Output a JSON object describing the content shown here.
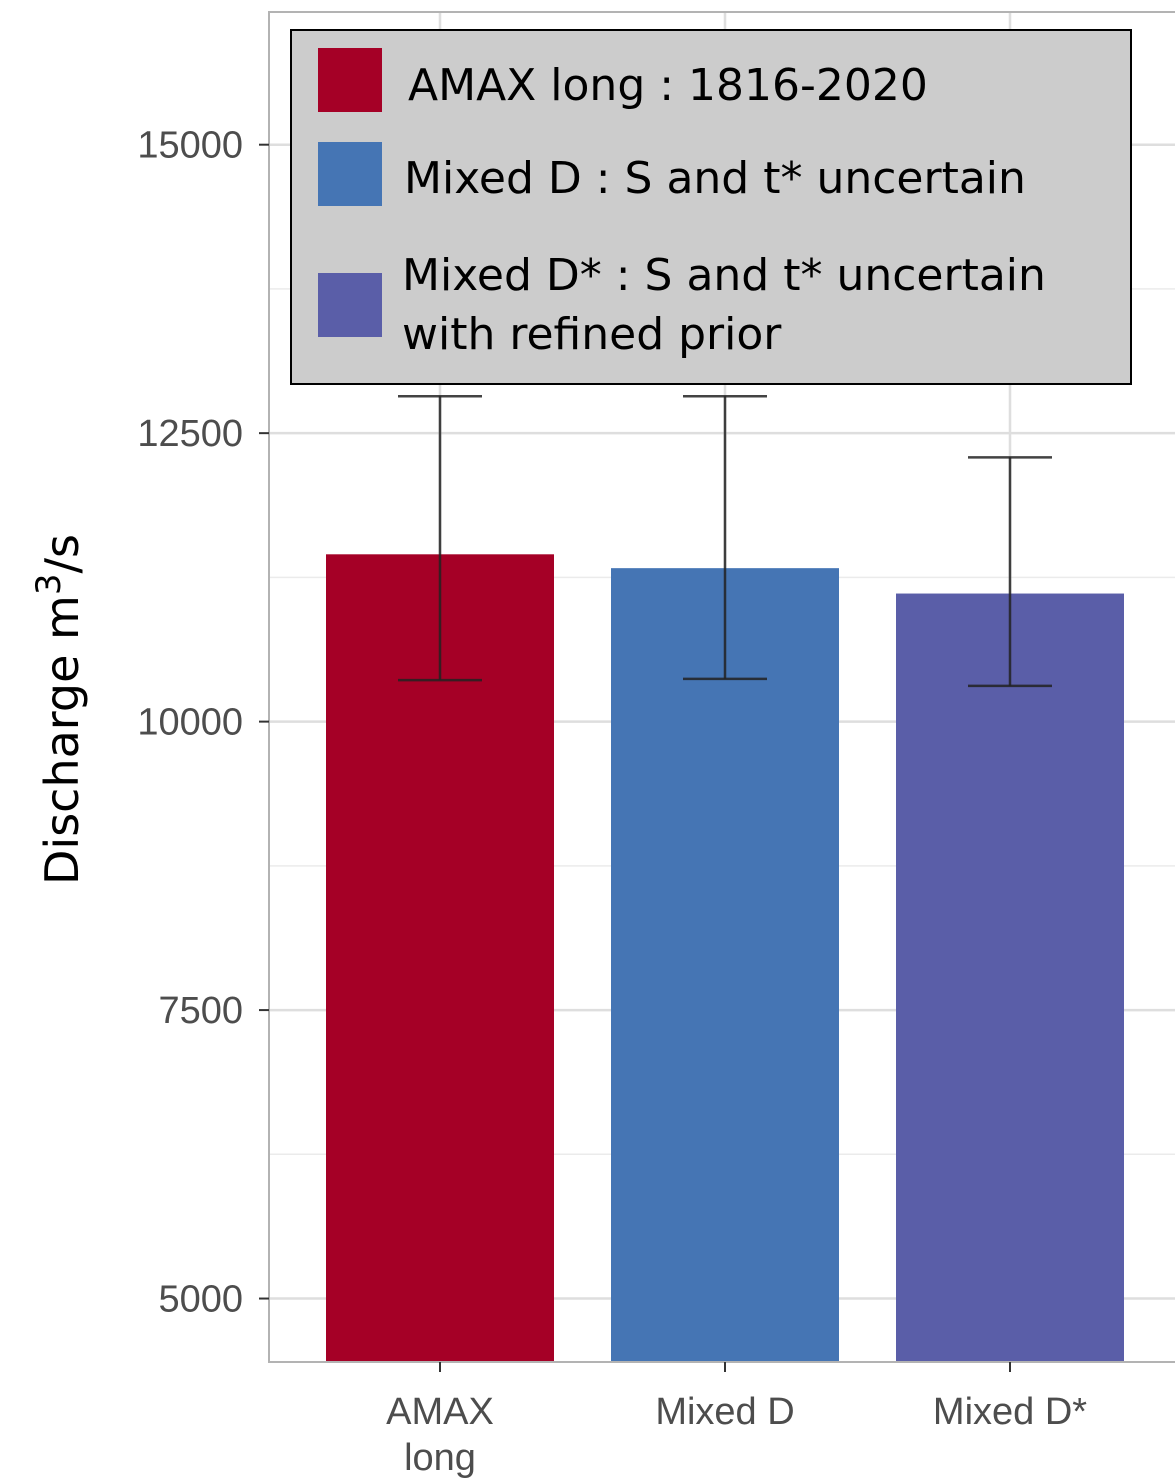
{
  "chart_data": {
    "type": "bar",
    "categories": [
      "AMAX\nlong",
      "Mixed D",
      "Mixed D*"
    ],
    "values": [
      11450,
      11330,
      11110
    ],
    "error_low": [
      10360,
      10370,
      10310
    ],
    "error_high": [
      12820,
      12820,
      12290
    ],
    "colors": [
      "#a50026",
      "#4575b4",
      "#5a5ea8"
    ],
    "ylabel": "Discharge m",
    "ylabel_superscript": "3",
    "ylabel_suffix": "/s",
    "ylim": [
      4450,
      16150
    ],
    "yticks": [
      5000,
      7500,
      10000,
      12500,
      15000
    ],
    "grid": true,
    "legend_position": "top",
    "legend": [
      {
        "text": [
          "AMAX long : 1816-2020"
        ],
        "color": "#a50026"
      },
      {
        "text": [
          "Mixed D : S and t* uncertain"
        ],
        "color": "#4575b4"
      },
      {
        "text": [
          "Mixed D* : S and t* uncertain",
          "with refined prior"
        ],
        "color": "#5a5ea8"
      }
    ]
  }
}
